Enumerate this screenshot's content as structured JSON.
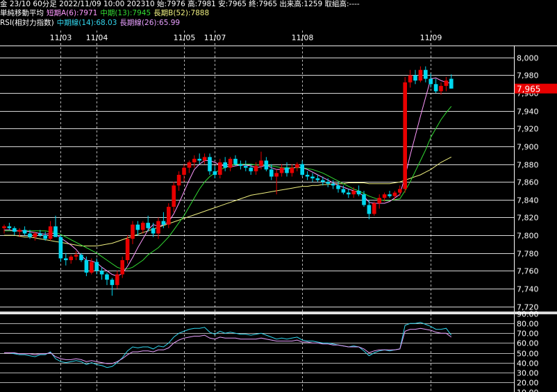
{
  "header": {
    "line1": "金 23/10 60分足 2022/11/09 10:00 202310 始:7976 高:7981 安:7965 終:7965 出来高:1259 取組高:----",
    "ma_title": "単純移動平均",
    "ma_short": "短期A(6):7971",
    "ma_mid": "中期(13):7945",
    "ma_long": "長期B(52):7888",
    "rsi_title": "RSI(相対力指数)",
    "rsi_mid": "中期線(14):68.03",
    "rsi_long": "長期線(26):65.99"
  },
  "colors": {
    "background": "#000000",
    "grid": "#ffffff",
    "up": "#e80000",
    "down": "#00d8f0",
    "ma_short": "#ff99ff",
    "ma_mid": "#33dd33",
    "ma_long": "#f0f080",
    "rsi_mid": "#33d8f0",
    "rsi_long": "#e8a0ff",
    "price_box": "#e80000"
  },
  "chart_data": [
    {
      "type": "candlestick",
      "title": "金 23/10 60分足",
      "date_labels": [
        {
          "index": 11,
          "label": "11/03"
        },
        {
          "index": 18,
          "label": "11/04"
        },
        {
          "index": 35,
          "label": "11/05"
        },
        {
          "index": 41,
          "label": "11/07"
        },
        {
          "index": 58,
          "label": "11/08"
        },
        {
          "index": 83,
          "label": "11/09"
        }
      ],
      "ylim": [
        7715,
        8010
      ],
      "yticks": [
        7720,
        7740,
        7760,
        7780,
        7800,
        7820,
        7840,
        7860,
        7880,
        7900,
        7920,
        7940,
        7960,
        7980,
        8000
      ],
      "ytick_labels": [
        "7,720",
        "7,740",
        "7,760",
        "7,780",
        "7,800",
        "7,820",
        "7,840",
        "7,860",
        "7,880",
        "7,900",
        "7,920",
        "7,940",
        "7,960",
        "7,980",
        "8,000"
      ],
      "last_price": 7965,
      "last_price_label": "7,965",
      "candles": [
        [
          7808,
          7812,
          7802,
          7810
        ],
        [
          7810,
          7814,
          7806,
          7808
        ],
        [
          7808,
          7810,
          7800,
          7804
        ],
        [
          7804,
          7808,
          7798,
          7806
        ],
        [
          7806,
          7810,
          7800,
          7802
        ],
        [
          7802,
          7806,
          7796,
          7798
        ],
        [
          7798,
          7804,
          7794,
          7802
        ],
        [
          7802,
          7806,
          7798,
          7800
        ],
        [
          7800,
          7804,
          7794,
          7796
        ],
        [
          7796,
          7816,
          7794,
          7810
        ],
        [
          7810,
          7822,
          7800,
          7798
        ],
        [
          7798,
          7800,
          7770,
          7774
        ],
        [
          7774,
          7780,
          7766,
          7772
        ],
        [
          7772,
          7778,
          7768,
          7776
        ],
        [
          7776,
          7782,
          7772,
          7778
        ],
        [
          7778,
          7780,
          7770,
          7772
        ],
        [
          7772,
          7776,
          7754,
          7758
        ],
        [
          7758,
          7774,
          7756,
          7770
        ],
        [
          7770,
          7774,
          7756,
          7760
        ],
        [
          7760,
          7764,
          7750,
          7756
        ],
        [
          7756,
          7758,
          7744,
          7750
        ],
        [
          7750,
          7752,
          7732,
          7744
        ],
        [
          7744,
          7760,
          7740,
          7756
        ],
        [
          7756,
          7776,
          7752,
          7772
        ],
        [
          7772,
          7800,
          7768,
          7796
        ],
        [
          7796,
          7816,
          7790,
          7812
        ],
        [
          7812,
          7816,
          7800,
          7806
        ],
        [
          7806,
          7816,
          7802,
          7814
        ],
        [
          7814,
          7822,
          7804,
          7808
        ],
        [
          7808,
          7814,
          7798,
          7802
        ],
        [
          7802,
          7820,
          7796,
          7816
        ],
        [
          7816,
          7826,
          7808,
          7812
        ],
        [
          7812,
          7836,
          7808,
          7832
        ],
        [
          7832,
          7860,
          7826,
          7856
        ],
        [
          7856,
          7872,
          7850,
          7868
        ],
        [
          7868,
          7880,
          7860,
          7876
        ],
        [
          7876,
          7884,
          7870,
          7882
        ],
        [
          7882,
          7890,
          7876,
          7886
        ],
        [
          7886,
          7892,
          7880,
          7884
        ],
        [
          7884,
          7892,
          7880,
          7888
        ],
        [
          7888,
          7892,
          7868,
          7872
        ],
        [
          7872,
          7878,
          7864,
          7868
        ],
        [
          7868,
          7886,
          7864,
          7882
        ],
        [
          7882,
          7888,
          7872,
          7876
        ],
        [
          7876,
          7888,
          7872,
          7886
        ],
        [
          7886,
          7890,
          7878,
          7880
        ],
        [
          7880,
          7884,
          7874,
          7878
        ],
        [
          7878,
          7884,
          7872,
          7876
        ],
        [
          7876,
          7880,
          7868,
          7872
        ],
        [
          7872,
          7882,
          7868,
          7878
        ],
        [
          7878,
          7894,
          7874,
          7884
        ],
        [
          7884,
          7888,
          7872,
          7874
        ],
        [
          7874,
          7880,
          7862,
          7866
        ],
        [
          7866,
          7874,
          7846,
          7870
        ],
        [
          7870,
          7880,
          7866,
          7876
        ],
        [
          7876,
          7882,
          7866,
          7870
        ],
        [
          7870,
          7880,
          7866,
          7876
        ],
        [
          7876,
          7882,
          7872,
          7880
        ],
        [
          7880,
          7884,
          7866,
          7868
        ],
        [
          7868,
          7872,
          7862,
          7866
        ],
        [
          7866,
          7870,
          7860,
          7864
        ],
        [
          7864,
          7868,
          7860,
          7862
        ],
        [
          7862,
          7866,
          7856,
          7860
        ],
        [
          7860,
          7864,
          7854,
          7858
        ],
        [
          7858,
          7862,
          7852,
          7856
        ],
        [
          7856,
          7860,
          7848,
          7852
        ],
        [
          7852,
          7856,
          7846,
          7848
        ],
        [
          7848,
          7852,
          7842,
          7846
        ],
        [
          7846,
          7854,
          7842,
          7850
        ],
        [
          7850,
          7856,
          7844,
          7846
        ],
        [
          7846,
          7850,
          7832,
          7834
        ],
        [
          7834,
          7840,
          7818,
          7824
        ],
        [
          7824,
          7838,
          7822,
          7836
        ],
        [
          7836,
          7846,
          7830,
          7842
        ],
        [
          7842,
          7848,
          7838,
          7846
        ],
        [
          7846,
          7850,
          7842,
          7844
        ],
        [
          7844,
          7850,
          7840,
          7848
        ],
        [
          7848,
          7856,
          7844,
          7852
        ],
        [
          7852,
          7978,
          7848,
          7972
        ],
        [
          7972,
          7986,
          7966,
          7980
        ],
        [
          7980,
          7986,
          7970,
          7974
        ],
        [
          7974,
          7990,
          7972,
          7986
        ],
        [
          7986,
          7990,
          7972,
          7976
        ],
        [
          7976,
          7982,
          7966,
          7970
        ],
        [
          7970,
          7976,
          7960,
          7962
        ],
        [
          7962,
          7972,
          7958,
          7968
        ],
        [
          7968,
          7978,
          7962,
          7974
        ],
        [
          7976,
          7981,
          7965,
          7965
        ]
      ],
      "ma_short_values": [
        7806,
        7806,
        7805,
        7805,
        7805,
        7804,
        7803,
        7802,
        7801,
        7802,
        7802,
        7797,
        7793,
        7789,
        7784,
        7777,
        7772,
        7771,
        7769,
        7764,
        7760,
        7756,
        7754,
        7757,
        7765,
        7775,
        7786,
        7796,
        7806,
        7812,
        7810,
        7812,
        7815,
        7824,
        7836,
        7849,
        7862,
        7874,
        7880,
        7884,
        7884,
        7882,
        7879,
        7878,
        7877,
        7878,
        7879,
        7879,
        7878,
        7876,
        7877,
        7879,
        7876,
        7874,
        7874,
        7875,
        7875,
        7877,
        7876,
        7874,
        7871,
        7868,
        7865,
        7862,
        7859,
        7856,
        7854,
        7852,
        7850,
        7848,
        7844,
        7837,
        7836,
        7836,
        7836,
        7838,
        7842,
        7846,
        7866,
        7890,
        7912,
        7934,
        7955,
        7976,
        7977,
        7974,
        7972,
        7971
      ],
      "ma_mid_values": [
        7805,
        7805,
        7805,
        7805,
        7805,
        7805,
        7805,
        7805,
        7805,
        7804,
        7803,
        7801,
        7798,
        7795,
        7792,
        7789,
        7786,
        7783,
        7780,
        7776,
        7772,
        7768,
        7764,
        7762,
        7762,
        7764,
        7768,
        7772,
        7778,
        7782,
        7786,
        7792,
        7798,
        7806,
        7814,
        7822,
        7832,
        7842,
        7852,
        7860,
        7866,
        7870,
        7874,
        7876,
        7878,
        7880,
        7880,
        7880,
        7880,
        7879,
        7879,
        7879,
        7878,
        7877,
        7876,
        7876,
        7876,
        7876,
        7876,
        7875,
        7874,
        7872,
        7870,
        7867,
        7864,
        7861,
        7858,
        7855,
        7852,
        7850,
        7847,
        7844,
        7842,
        7840,
        7839,
        7839,
        7840,
        7841,
        7850,
        7860,
        7872,
        7884,
        7896,
        7910,
        7920,
        7930,
        7938,
        7945
      ],
      "ma_long_values": [
        7800,
        7800,
        7800,
        7799,
        7798,
        7798,
        7797,
        7796,
        7795,
        7794,
        7793,
        7792,
        7791,
        7790,
        7789,
        7788,
        7788,
        7788,
        7788,
        7789,
        7790,
        7791,
        7793,
        7795,
        7797,
        7799,
        7801,
        7803,
        7805,
        7807,
        7809,
        7811,
        7813,
        7815,
        7817,
        7819,
        7821,
        7823,
        7825,
        7827,
        7829,
        7831,
        7833,
        7835,
        7837,
        7839,
        7841,
        7843,
        7845,
        7846,
        7847,
        7848,
        7849,
        7850,
        7851,
        7852,
        7853,
        7854,
        7855,
        7855,
        7856,
        7856,
        7857,
        7857,
        7858,
        7858,
        7858,
        7859,
        7859,
        7859,
        7859,
        7858,
        7858,
        7858,
        7858,
        7858,
        7859,
        7860,
        7862,
        7864,
        7866,
        7868,
        7871,
        7874,
        7878,
        7882,
        7885,
        7888
      ]
    },
    {
      "type": "line",
      "title": "RSI(相対力指数)",
      "ylim": [
        10,
        90
      ],
      "yticks": [
        10,
        20,
        30,
        40,
        50,
        60,
        70,
        80,
        90
      ],
      "ytick_labels": [
        "10.00",
        "20.00",
        "30.00",
        "40.00",
        "50.00",
        "60.00",
        "70.00",
        "80.00",
        "90.00"
      ],
      "series": [
        {
          "name": "中期線(14)",
          "values": [
            50,
            50,
            49,
            48,
            48,
            47,
            46,
            48,
            48,
            51,
            44,
            41,
            40,
            41,
            42,
            41,
            38,
            40,
            38,
            37,
            35,
            36,
            40,
            45,
            52,
            56,
            55,
            56,
            56,
            54,
            57,
            56,
            60,
            66,
            70,
            72,
            74,
            75,
            75,
            76,
            71,
            69,
            72,
            70,
            71,
            70,
            69,
            69,
            68,
            69,
            70,
            68,
            66,
            64,
            65,
            64,
            65,
            66,
            63,
            62,
            62,
            61,
            60,
            60,
            59,
            58,
            57,
            56,
            57,
            56,
            52,
            47,
            50,
            52,
            53,
            52,
            53,
            54,
            78,
            80,
            80,
            81,
            79,
            77,
            74,
            74,
            75,
            68
          ]
        },
        {
          "name": "長期線(26)",
          "values": [
            50,
            50,
            50,
            49,
            49,
            49,
            48,
            49,
            49,
            50,
            46,
            44,
            43,
            43,
            44,
            43,
            41,
            42,
            41,
            40,
            39,
            39,
            41,
            44,
            48,
            51,
            51,
            52,
            52,
            51,
            53,
            53,
            55,
            60,
            63,
            65,
            66,
            67,
            67,
            68,
            65,
            64,
            66,
            65,
            65,
            65,
            64,
            64,
            64,
            64,
            65,
            64,
            63,
            62,
            62,
            62,
            62,
            63,
            61,
            61,
            60,
            60,
            59,
            59,
            58,
            58,
            57,
            56,
            56,
            56,
            54,
            50,
            52,
            53,
            53,
            53,
            53,
            54,
            72,
            74,
            74,
            75,
            74,
            73,
            71,
            70,
            70,
            66
          ]
        }
      ]
    }
  ]
}
